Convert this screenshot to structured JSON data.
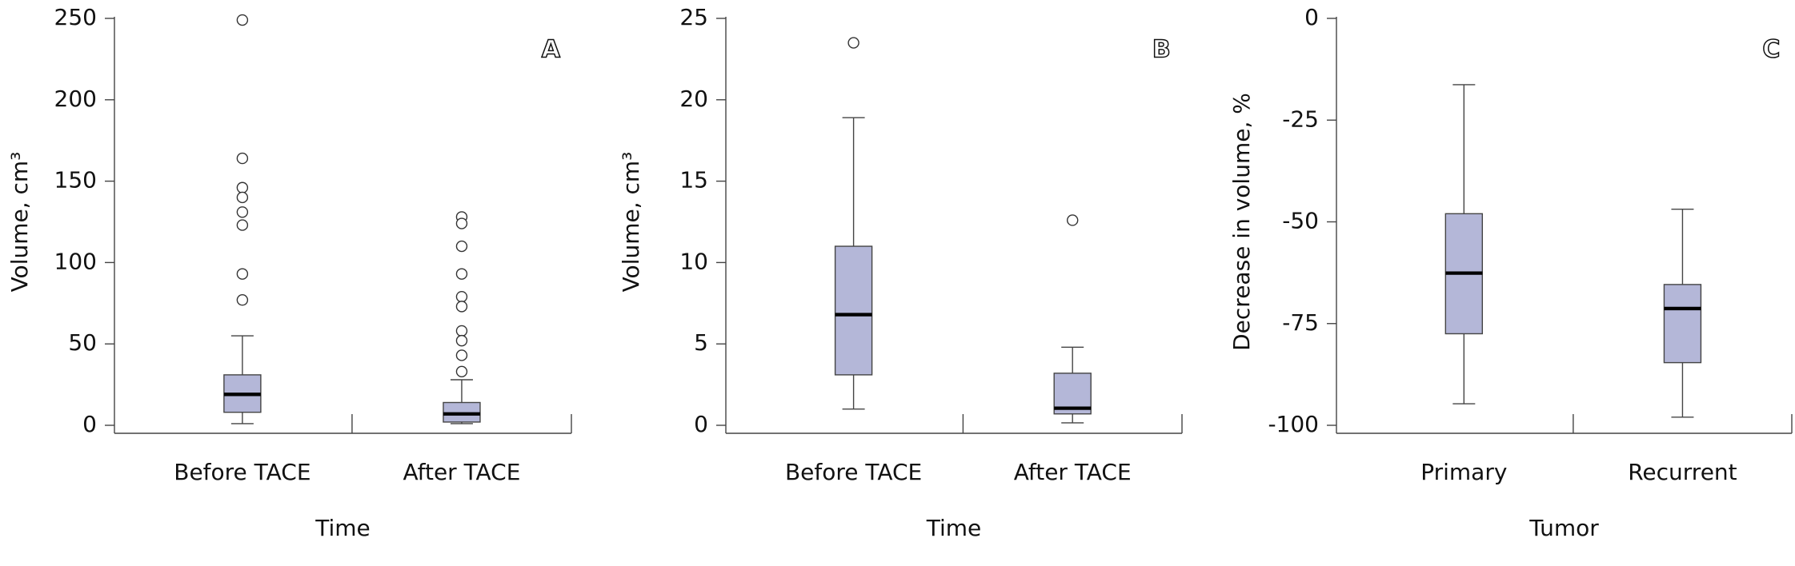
{
  "chart_data": [
    {
      "type": "box",
      "panel_label": "A",
      "y_label": "Volume, cm³",
      "x_label": "Time",
      "color": "#b4b7d8",
      "categories": [
        "Before TACE",
        "After TACE"
      ],
      "boxes": [
        {
          "min": 1,
          "q1": 8,
          "median": 19,
          "q3": 31,
          "max": 55,
          "outliers": [
            249,
            164,
            146,
            140,
            131,
            123,
            93,
            77
          ]
        },
        {
          "min": 1,
          "q1": 2,
          "median": 7,
          "q3": 14,
          "max": 28,
          "outliers": [
            128,
            124,
            110,
            93,
            79,
            73,
            58,
            52,
            43,
            33
          ]
        }
      ],
      "ylim": [
        0,
        250
      ],
      "yticks": [
        0,
        50,
        100,
        150,
        200,
        250
      ]
    },
    {
      "type": "box",
      "panel_label": "B",
      "y_label": "Volume, cm³",
      "x_label": "Time",
      "color": "#b4b7d8",
      "categories": [
        "Before TACE",
        "After TACE"
      ],
      "boxes": [
        {
          "min": 1.0,
          "q1": 3.1,
          "median": 6.8,
          "q3": 11.0,
          "max": 18.9,
          "outliers": [
            23.5
          ]
        },
        {
          "min": 0.15,
          "q1": 0.7,
          "median": 1.05,
          "q3": 3.2,
          "max": 4.8,
          "outliers": [
            12.6
          ]
        }
      ],
      "ylim": [
        0,
        25
      ],
      "yticks": [
        0,
        5,
        10,
        15,
        20,
        25
      ]
    },
    {
      "type": "box",
      "panel_label": "C",
      "y_label": "Decrease in volume, %",
      "x_label": "Tumor",
      "color": "#b4b7d8",
      "categories": [
        "Primary",
        "Recurrent"
      ],
      "boxes": [
        {
          "min": -94.7,
          "q1": -77.5,
          "median": -62.6,
          "q3": -48,
          "max": -16.3,
          "outliers": []
        },
        {
          "min": -98,
          "q1": -84.6,
          "median": -71.3,
          "q3": -65.4,
          "max": -46.9,
          "outliers": []
        }
      ],
      "ylim": [
        -100,
        0
      ],
      "yticks": [
        -100,
        -75,
        -50,
        -25,
        0
      ]
    }
  ]
}
